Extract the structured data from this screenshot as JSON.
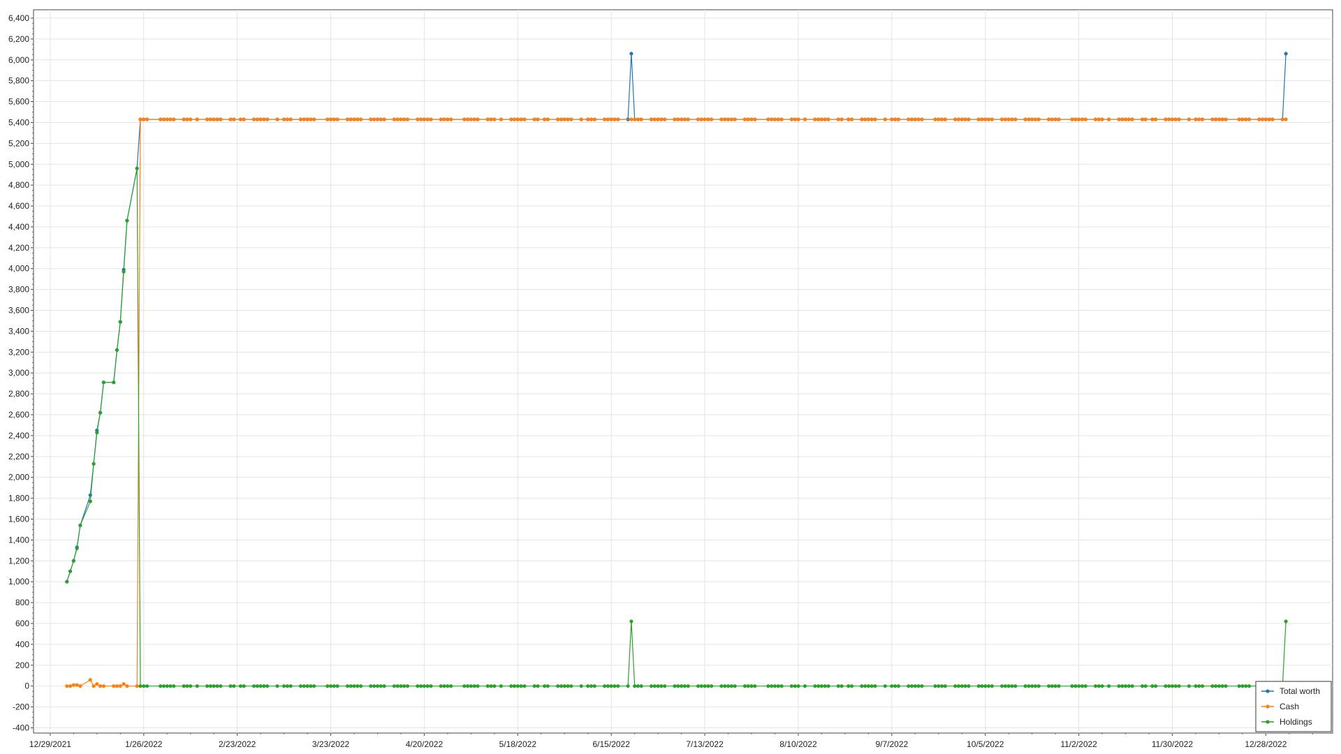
{
  "chart_data": {
    "type": "line",
    "title": "",
    "xlabel": "",
    "ylabel": "",
    "x_type": "date",
    "xlim": [
      "2021-12-24",
      "2023-01-17"
    ],
    "ylim": [
      -450,
      6480
    ],
    "y_ticks": [
      -400,
      -200,
      0,
      200,
      400,
      600,
      800,
      1000,
      1200,
      1400,
      1600,
      1800,
      2000,
      2200,
      2400,
      2600,
      2800,
      3000,
      3200,
      3400,
      3600,
      3800,
      4000,
      4200,
      4400,
      4600,
      4800,
      5000,
      5200,
      5400,
      5600,
      5800,
      6000,
      6200,
      6400
    ],
    "y_tick_labels": [
      "-400",
      "-200",
      "0",
      "200",
      "400",
      "600",
      "800",
      "1,000",
      "1,200",
      "1,400",
      "1,600",
      "1,800",
      "2,000",
      "2,200",
      "2,400",
      "2,600",
      "2,800",
      "3,000",
      "3,200",
      "3,400",
      "3,600",
      "3,800",
      "4,000",
      "4,200",
      "4,400",
      "4,600",
      "4,800",
      "5,000",
      "5,200",
      "5,400",
      "5,600",
      "5,800",
      "6,000",
      "6,200",
      "6,400"
    ],
    "x_ticks": [
      "2021-12-29",
      "2022-01-26",
      "2022-02-23",
      "2022-03-23",
      "2022-04-20",
      "2022-05-18",
      "2022-06-15",
      "2022-07-13",
      "2022-08-10",
      "2022-09-07",
      "2022-10-05",
      "2022-11-02",
      "2022-11-30",
      "2022-12-28"
    ],
    "x_tick_labels": [
      "12/29/2021",
      "1/26/2022",
      "2/23/2022",
      "3/23/2022",
      "4/20/2022",
      "5/18/2022",
      "6/15/2022",
      "7/13/2022",
      "8/10/2022",
      "9/7/2022",
      "10/5/2022",
      "11/2/2022",
      "11/30/2022",
      "12/28/2022"
    ],
    "grid": true,
    "legend_position": "bottom-right",
    "series": [
      {
        "name": "Total worth",
        "color": "#1f77b4",
        "points": [
          [
            "2022-01-03",
            1000
          ],
          [
            "2022-01-04",
            1100
          ],
          [
            "2022-01-05",
            1200
          ],
          [
            "2022-01-06",
            1330
          ],
          [
            "2022-01-07",
            1540
          ],
          [
            "2022-01-10",
            1830
          ],
          [
            "2022-01-11",
            2130
          ],
          [
            "2022-01-12",
            2450
          ],
          [
            "2022-01-13",
            2620
          ],
          [
            "2022-01-14",
            2910
          ],
          [
            "2022-01-18",
            3220
          ],
          [
            "2022-01-19",
            3490
          ],
          [
            "2022-01-20",
            3990
          ],
          [
            "2022-01-21",
            4460
          ],
          [
            "2022-01-24",
            4960
          ],
          [
            "2022-01-25",
            5430
          ],
          [
            "2022-06-20",
            5430
          ],
          [
            "2022-06-21",
            6060
          ],
          [
            "2022-06-22",
            5430
          ],
          [
            "2022-12-30",
            5430
          ],
          [
            "2023-01-03",
            6060
          ]
        ]
      },
      {
        "name": "Cash",
        "color": "#ff7f0e",
        "points": [
          [
            "2022-01-03",
            0
          ],
          [
            "2022-01-04",
            0
          ],
          [
            "2022-01-05",
            10
          ],
          [
            "2022-01-06",
            10
          ],
          [
            "2022-01-07",
            0
          ],
          [
            "2022-01-10",
            60
          ],
          [
            "2022-01-11",
            0
          ],
          [
            "2022-01-12",
            20
          ],
          [
            "2022-01-13",
            0
          ],
          [
            "2022-01-14",
            0
          ],
          [
            "2022-01-18",
            0
          ],
          [
            "2022-01-19",
            0
          ],
          [
            "2022-01-20",
            20
          ],
          [
            "2022-01-21",
            0
          ],
          [
            "2022-01-24",
            0
          ],
          [
            "2022-01-25",
            5430
          ],
          [
            "2023-01-03",
            5430
          ]
        ]
      },
      {
        "name": "Holdings",
        "color": "#2ca02c",
        "points": [
          [
            "2022-01-03",
            1000
          ],
          [
            "2022-01-04",
            1100
          ],
          [
            "2022-01-05",
            1200
          ],
          [
            "2022-01-06",
            1320
          ],
          [
            "2022-01-07",
            1540
          ],
          [
            "2022-01-10",
            1770
          ],
          [
            "2022-01-11",
            2130
          ],
          [
            "2022-01-12",
            2430
          ],
          [
            "2022-01-13",
            2620
          ],
          [
            "2022-01-14",
            2910
          ],
          [
            "2022-01-18",
            3220
          ],
          [
            "2022-01-19",
            3490
          ],
          [
            "2022-01-20",
            3970
          ],
          [
            "2022-01-21",
            4460
          ],
          [
            "2022-01-24",
            4960
          ],
          [
            "2022-01-25",
            0
          ],
          [
            "2022-06-20",
            0
          ],
          [
            "2022-06-21",
            620
          ],
          [
            "2022-06-22",
            0
          ],
          [
            "2022-12-30",
            0
          ],
          [
            "2023-01-03",
            620
          ]
        ]
      }
    ],
    "marker_dates_note": "business days"
  }
}
